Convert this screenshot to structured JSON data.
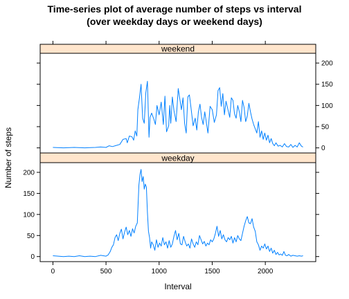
{
  "chart_data": {
    "type": "line",
    "title_line1": "Time-series plot of average number of steps vs interval",
    "title_line2": "(over weekday days or weekend days)",
    "xlabel": "Interval",
    "ylabel": "Number of steps",
    "xlim": [
      -120,
      2475
    ],
    "ylim": [
      -12,
      223
    ],
    "x_ticks": [
      0,
      500,
      1000,
      1500,
      2000
    ],
    "y_ticks": [
      0,
      50,
      100,
      150,
      200
    ],
    "line_color": "#0080ff",
    "strip_color": "#ffe5cc",
    "panels": [
      {
        "name": "weekend",
        "points": [
          [
            0,
            1
          ],
          [
            100,
            0
          ],
          [
            200,
            1
          ],
          [
            300,
            0
          ],
          [
            400,
            1
          ],
          [
            450,
            2
          ],
          [
            500,
            1
          ],
          [
            530,
            5
          ],
          [
            560,
            3
          ],
          [
            600,
            6
          ],
          [
            630,
            8
          ],
          [
            660,
            20
          ],
          [
            690,
            22
          ],
          [
            700,
            12
          ],
          [
            720,
            28
          ],
          [
            745,
            26
          ],
          [
            760,
            18
          ],
          [
            775,
            40
          ],
          [
            790,
            28
          ],
          [
            800,
            90
          ],
          [
            815,
            118
          ],
          [
            830,
            150
          ],
          [
            845,
            70
          ],
          [
            860,
            58
          ],
          [
            875,
            130
          ],
          [
            890,
            157
          ],
          [
            905,
            25
          ],
          [
            915,
            72
          ],
          [
            930,
            82
          ],
          [
            950,
            68
          ],
          [
            965,
            55
          ],
          [
            980,
            100
          ],
          [
            1000,
            78
          ],
          [
            1020,
            108
          ],
          [
            1040,
            55
          ],
          [
            1055,
            122
          ],
          [
            1070,
            38
          ],
          [
            1090,
            52
          ],
          [
            1100,
            100
          ],
          [
            1110,
            58
          ],
          [
            1125,
            120
          ],
          [
            1140,
            88
          ],
          [
            1160,
            62
          ],
          [
            1180,
            140
          ],
          [
            1195,
            115
          ],
          [
            1210,
            90
          ],
          [
            1225,
            118
          ],
          [
            1240,
            58
          ],
          [
            1255,
            35
          ],
          [
            1270,
            120
          ],
          [
            1285,
            125
          ],
          [
            1300,
            95
          ],
          [
            1320,
            52
          ],
          [
            1340,
            70
          ],
          [
            1355,
            42
          ],
          [
            1370,
            85
          ],
          [
            1385,
            103
          ],
          [
            1400,
            72
          ],
          [
            1415,
            55
          ],
          [
            1430,
            85
          ],
          [
            1445,
            60
          ],
          [
            1460,
            35
          ],
          [
            1480,
            98
          ],
          [
            1500,
            90
          ],
          [
            1520,
            60
          ],
          [
            1540,
            78
          ],
          [
            1555,
            135
          ],
          [
            1570,
            142
          ],
          [
            1585,
            98
          ],
          [
            1600,
            128
          ],
          [
            1615,
            78
          ],
          [
            1630,
            110
          ],
          [
            1650,
            88
          ],
          [
            1665,
            72
          ],
          [
            1680,
            118
          ],
          [
            1695,
            112
          ],
          [
            1710,
            80
          ],
          [
            1725,
            70
          ],
          [
            1740,
            100
          ],
          [
            1755,
            85
          ],
          [
            1770,
            62
          ],
          [
            1785,
            112
          ],
          [
            1800,
            95
          ],
          [
            1815,
            62
          ],
          [
            1830,
            75
          ],
          [
            1845,
            105
          ],
          [
            1860,
            85
          ],
          [
            1875,
            68
          ],
          [
            1890,
            55
          ],
          [
            1905,
            45
          ],
          [
            1920,
            35
          ],
          [
            1935,
            62
          ],
          [
            1950,
            25
          ],
          [
            1965,
            40
          ],
          [
            1980,
            20
          ],
          [
            1995,
            35
          ],
          [
            2010,
            18
          ],
          [
            2025,
            30
          ],
          [
            2040,
            12
          ],
          [
            2055,
            22
          ],
          [
            2070,
            10
          ],
          [
            2085,
            5
          ],
          [
            2100,
            12
          ],
          [
            2120,
            4
          ],
          [
            2140,
            6
          ],
          [
            2160,
            2
          ],
          [
            2180,
            10
          ],
          [
            2200,
            3
          ],
          [
            2220,
            2
          ],
          [
            2240,
            8
          ],
          [
            2260,
            1
          ],
          [
            2280,
            6
          ],
          [
            2300,
            2
          ],
          [
            2320,
            12
          ],
          [
            2340,
            4
          ],
          [
            2355,
            2
          ]
        ]
      },
      {
        "name": "weekday",
        "points": [
          [
            0,
            2
          ],
          [
            50,
            1
          ],
          [
            100,
            0
          ],
          [
            150,
            1
          ],
          [
            200,
            0
          ],
          [
            250,
            2
          ],
          [
            300,
            0
          ],
          [
            350,
            1
          ],
          [
            400,
            0
          ],
          [
            450,
            3
          ],
          [
            500,
            1
          ],
          [
            520,
            4
          ],
          [
            540,
            12
          ],
          [
            555,
            22
          ],
          [
            570,
            28
          ],
          [
            585,
            45
          ],
          [
            600,
            52
          ],
          [
            615,
            38
          ],
          [
            630,
            55
          ],
          [
            645,
            65
          ],
          [
            660,
            42
          ],
          [
            675,
            58
          ],
          [
            690,
            70
          ],
          [
            705,
            52
          ],
          [
            720,
            62
          ],
          [
            735,
            48
          ],
          [
            750,
            66
          ],
          [
            765,
            56
          ],
          [
            780,
            72
          ],
          [
            795,
            80
          ],
          [
            810,
            170
          ],
          [
            820,
            195
          ],
          [
            830,
            207
          ],
          [
            840,
            178
          ],
          [
            850,
            190
          ],
          [
            860,
            160
          ],
          [
            870,
            172
          ],
          [
            880,
            165
          ],
          [
            890,
            105
          ],
          [
            900,
            60
          ],
          [
            910,
            45
          ],
          [
            920,
            20
          ],
          [
            930,
            35
          ],
          [
            945,
            28
          ],
          [
            960,
            15
          ],
          [
            975,
            40
          ],
          [
            990,
            22
          ],
          [
            1005,
            32
          ],
          [
            1020,
            25
          ],
          [
            1035,
            45
          ],
          [
            1050,
            28
          ],
          [
            1065,
            35
          ],
          [
            1080,
            20
          ],
          [
            1095,
            38
          ],
          [
            1110,
            22
          ],
          [
            1125,
            30
          ],
          [
            1140,
            48
          ],
          [
            1155,
            62
          ],
          [
            1170,
            40
          ],
          [
            1185,
            55
          ],
          [
            1200,
            30
          ],
          [
            1215,
            28
          ],
          [
            1230,
            48
          ],
          [
            1245,
            35
          ],
          [
            1260,
            25
          ],
          [
            1275,
            30
          ],
          [
            1290,
            20
          ],
          [
            1305,
            42
          ],
          [
            1320,
            30
          ],
          [
            1335,
            22
          ],
          [
            1350,
            35
          ],
          [
            1365,
            28
          ],
          [
            1380,
            50
          ],
          [
            1395,
            40
          ],
          [
            1410,
            30
          ],
          [
            1425,
            36
          ],
          [
            1440,
            25
          ],
          [
            1455,
            32
          ],
          [
            1470,
            28
          ],
          [
            1485,
            40
          ],
          [
            1500,
            35
          ],
          [
            1515,
            42
          ],
          [
            1530,
            55
          ],
          [
            1545,
            72
          ],
          [
            1560,
            48
          ],
          [
            1575,
            62
          ],
          [
            1590,
            42
          ],
          [
            1605,
            52
          ],
          [
            1620,
            40
          ],
          [
            1635,
            35
          ],
          [
            1650,
            45
          ],
          [
            1665,
            40
          ],
          [
            1680,
            48
          ],
          [
            1695,
            32
          ],
          [
            1710,
            45
          ],
          [
            1725,
            35
          ],
          [
            1740,
            50
          ],
          [
            1755,
            42
          ],
          [
            1770,
            38
          ],
          [
            1785,
            55
          ],
          [
            1800,
            72
          ],
          [
            1815,
            85
          ],
          [
            1830,
            95
          ],
          [
            1845,
            80
          ],
          [
            1860,
            78
          ],
          [
            1875,
            90
          ],
          [
            1890,
            70
          ],
          [
            1905,
            60
          ],
          [
            1920,
            35
          ],
          [
            1935,
            28
          ],
          [
            1950,
            15
          ],
          [
            1965,
            25
          ],
          [
            1980,
            20
          ],
          [
            1995,
            30
          ],
          [
            2010,
            18
          ],
          [
            2025,
            25
          ],
          [
            2040,
            12
          ],
          [
            2055,
            20
          ],
          [
            2070,
            8
          ],
          [
            2085,
            15
          ],
          [
            2100,
            5
          ],
          [
            2115,
            10
          ],
          [
            2130,
            4
          ],
          [
            2145,
            6
          ],
          [
            2160,
            3
          ],
          [
            2175,
            12
          ],
          [
            2190,
            3
          ],
          [
            2205,
            2
          ],
          [
            2220,
            5
          ],
          [
            2240,
            1
          ],
          [
            2260,
            3
          ],
          [
            2280,
            2
          ],
          [
            2300,
            1
          ],
          [
            2320,
            2
          ],
          [
            2340,
            1
          ],
          [
            2355,
            2
          ]
        ]
      }
    ]
  }
}
